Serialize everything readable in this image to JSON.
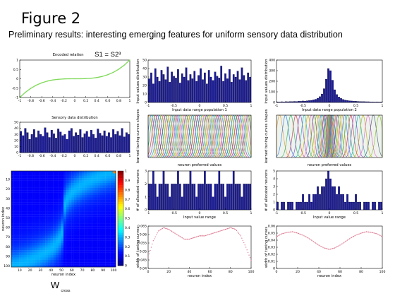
{
  "title": "Figure 2",
  "subtitle": "Preliminary results: interesting emerging features for uniform sensory data distribution",
  "colors": {
    "bar": "#1a1a9e",
    "curve": "#7ed957",
    "dotted": "#d45a78"
  },
  "chart_data": [
    {
      "id": "encoded-relation",
      "type": "line",
      "title": "Encoded relation",
      "annotation": "S1 = S2³",
      "xlim": [
        -1,
        1
      ],
      "ylim": [
        -1,
        1
      ],
      "xticks": [
        "-1",
        "-0.8",
        "-0.6",
        "-0.4",
        "-0.2",
        "0",
        "0.2",
        "0.4",
        "0.6",
        "0.8",
        "1"
      ],
      "yticks": [
        "-1",
        "-0.5",
        "0",
        "0.5",
        "1"
      ],
      "x": [
        -1,
        -0.9,
        -0.8,
        -0.7,
        -0.6,
        -0.5,
        -0.4,
        -0.3,
        -0.2,
        -0.1,
        0,
        0.1,
        0.2,
        0.3,
        0.4,
        0.5,
        0.6,
        0.7,
        0.8,
        0.9,
        1
      ],
      "y": [
        -1,
        -0.729,
        -0.512,
        -0.343,
        -0.216,
        -0.125,
        -0.064,
        -0.027,
        -0.008,
        -0.001,
        0,
        0.001,
        0.008,
        0.027,
        0.064,
        0.125,
        0.216,
        0.343,
        0.512,
        0.729,
        1
      ]
    },
    {
      "id": "sensory-distribution",
      "type": "bar",
      "title": "Sensory data distribution",
      "xlim": [
        -1,
        1
      ],
      "ylim": [
        0,
        50
      ],
      "xticks": [
        "-1",
        "-0.8",
        "-0.6",
        "-0.4",
        "-0.2",
        "0",
        "0.2",
        "0.4",
        "0.6",
        "0.8",
        "1"
      ],
      "yticks": [
        "0",
        "10",
        "20",
        "30",
        "40",
        "50"
      ],
      "values": [
        35,
        28,
        40,
        33,
        22,
        30,
        38,
        25,
        36,
        30,
        27,
        41,
        33,
        25,
        37,
        31,
        24,
        39,
        34,
        28,
        30,
        22,
        36,
        40,
        27,
        33,
        29,
        38,
        25,
        31,
        35,
        26,
        37,
        30,
        24,
        39,
        32,
        28,
        36,
        27,
        33,
        25,
        38,
        30,
        35,
        28,
        40,
        26,
        33,
        30
      ]
    },
    {
      "id": "wcross-heatmap",
      "type": "heatmap",
      "xlabel": "neuron index",
      "ylabel": "neuron index",
      "xticks": [
        "10",
        "20",
        "30",
        "40",
        "50",
        "60",
        "70",
        "80",
        "90",
        "100"
      ],
      "yticks": [
        "10",
        "20",
        "30",
        "40",
        "50",
        "60",
        "70",
        "80",
        "90",
        "100"
      ],
      "colorbar": [
        "0",
        "0.1",
        "0.2",
        "0.3",
        "0.4",
        "0.5",
        "0.6",
        "0.7",
        "0.8",
        "0.9",
        "1"
      ],
      "caption": "W",
      "caption_sub": "cross"
    },
    {
      "id": "input-pop1",
      "type": "bar",
      "xlabel": "Input data range population 1",
      "ylabel": "Input values distribution",
      "xlim": [
        -1,
        1
      ],
      "ylim": [
        0,
        50
      ],
      "xticks": [
        "-1",
        "-0.5",
        "0",
        "0.5",
        "1"
      ],
      "yticks": [
        "0",
        "10",
        "20",
        "30",
        "40",
        "50"
      ],
      "values": [
        28,
        35,
        22,
        40,
        30,
        25,
        38,
        33,
        27,
        42,
        24,
        36,
        31,
        29,
        39,
        23,
        34,
        30,
        41,
        26,
        33,
        28,
        37,
        25,
        32,
        40,
        27,
        35,
        22,
        38,
        30,
        26,
        36,
        31,
        29,
        43,
        25,
        34,
        28,
        39,
        24,
        33,
        30,
        37,
        27,
        41,
        32,
        26,
        35,
        30
      ]
    },
    {
      "id": "input-pop2",
      "type": "bar",
      "xlabel": "Input data range population 2",
      "ylabel": "Input values distribution",
      "xlim": [
        -1,
        1
      ],
      "ylim": [
        0,
        400
      ],
      "xticks": [
        "-1",
        "-0.5",
        "0",
        "0.5",
        "1"
      ],
      "yticks": [
        "0",
        "100",
        "200",
        "300",
        "400"
      ],
      "values": [
        6,
        5,
        7,
        6,
        8,
        7,
        9,
        8,
        10,
        9,
        12,
        11,
        14,
        13,
        16,
        18,
        20,
        25,
        30,
        40,
        55,
        80,
        130,
        220,
        320,
        300,
        210,
        120,
        75,
        52,
        38,
        28,
        22,
        19,
        16,
        14,
        12,
        11,
        10,
        9,
        8,
        8,
        7,
        7,
        6,
        6,
        5,
        6,
        5,
        5
      ]
    },
    {
      "id": "tuning-pop1",
      "type": "line",
      "xlabel": "neuron preferred values",
      "ylabel": "learned tuning curves shapes",
      "xlim": [
        -1,
        1
      ],
      "ylim": [
        0,
        1
      ],
      "curves": 50,
      "spacing": "uniform"
    },
    {
      "id": "tuning-pop2",
      "type": "line",
      "xlabel": "neuron preferred values",
      "ylabel": "learned tuning curves shapes",
      "xlim": [
        -1,
        1
      ],
      "ylim": [
        0,
        1
      ],
      "curves": 50,
      "spacing": "dense-center"
    },
    {
      "id": "allocated-pop1",
      "type": "bar",
      "xlabel": "Input value range",
      "ylabel": "# of allocated neurons",
      "xlim": [
        -1,
        1
      ],
      "ylim": [
        0,
        3
      ],
      "xticks": [
        "-1",
        "-0.5",
        "0",
        "0.5",
        "1"
      ],
      "yticks": [
        "0",
        "1",
        "2",
        "3"
      ],
      "values": [
        2,
        2,
        3,
        2,
        1,
        2,
        2,
        3,
        2,
        2,
        1,
        2,
        2,
        2,
        3,
        2,
        1,
        2,
        2,
        2,
        3,
        2,
        2,
        1,
        2,
        2,
        2,
        3,
        2,
        2,
        2,
        1,
        2,
        2,
        3,
        2,
        2,
        1,
        2,
        2,
        2,
        3,
        2,
        2,
        2,
        1,
        2,
        2,
        2,
        2
      ]
    },
    {
      "id": "allocated-pop2",
      "type": "bar",
      "xlabel": "Input value range",
      "ylabel": "# of allocated neurons",
      "xlim": [
        -1,
        1
      ],
      "ylim": [
        0,
        5
      ],
      "xticks": [
        "-1",
        "-0.5",
        "0",
        "0.5",
        "1"
      ],
      "yticks": [
        "0",
        "1",
        "2",
        "3",
        "4",
        "5"
      ],
      "values": [
        1,
        0,
        1,
        1,
        0,
        1,
        1,
        1,
        0,
        1,
        1,
        1,
        2,
        1,
        1,
        2,
        1,
        2,
        2,
        3,
        2,
        3,
        3,
        4,
        5,
        4,
        3,
        3,
        2,
        3,
        2,
        2,
        1,
        2,
        1,
        1,
        1,
        2,
        1,
        1,
        0,
        1,
        1,
        1,
        0,
        1,
        1,
        0,
        1,
        1
      ]
    },
    {
      "id": "width-pop1",
      "type": "line",
      "xlabel": "neuron index",
      "ylabel": "width of tuning curves",
      "xlim": [
        0,
        100
      ],
      "ylim": [
        0.04,
        0.066
      ],
      "xticks": [
        "0",
        "20",
        "40",
        "60",
        "80",
        "100"
      ],
      "yticks": [
        "0.04",
        "0.045",
        "0.05",
        "0.055",
        "0.06",
        "0.065"
      ],
      "x": [
        0,
        5,
        10,
        15,
        20,
        25,
        30,
        35,
        40,
        45,
        50,
        55,
        60,
        65,
        70,
        75,
        80,
        85,
        90,
        95,
        100
      ],
      "y": [
        0.047,
        0.057,
        0.063,
        0.065,
        0.064,
        0.062,
        0.06,
        0.058,
        0.058,
        0.059,
        0.06,
        0.06,
        0.061,
        0.062,
        0.063,
        0.064,
        0.065,
        0.064,
        0.06,
        0.053,
        0.045
      ]
    },
    {
      "id": "width-pop2",
      "type": "line",
      "xlabel": "neuron index",
      "ylabel": "width of tuning curves",
      "xlim": [
        0,
        100
      ],
      "ylim": [
        0,
        0.06
      ],
      "xticks": [
        "0",
        "20",
        "40",
        "60",
        "80",
        "100"
      ],
      "yticks": [
        "0",
        "0.01",
        "0.02",
        "0.03",
        "0.04",
        "0.05",
        "0.06"
      ],
      "x": [
        0,
        5,
        10,
        15,
        20,
        25,
        30,
        35,
        40,
        45,
        50,
        55,
        60,
        65,
        70,
        75,
        80,
        85,
        90,
        95,
        100
      ],
      "y": [
        0.045,
        0.049,
        0.051,
        0.052,
        0.05,
        0.047,
        0.043,
        0.038,
        0.033,
        0.029,
        0.027,
        0.029,
        0.033,
        0.038,
        0.043,
        0.047,
        0.05,
        0.052,
        0.051,
        0.049,
        0.045
      ]
    }
  ]
}
